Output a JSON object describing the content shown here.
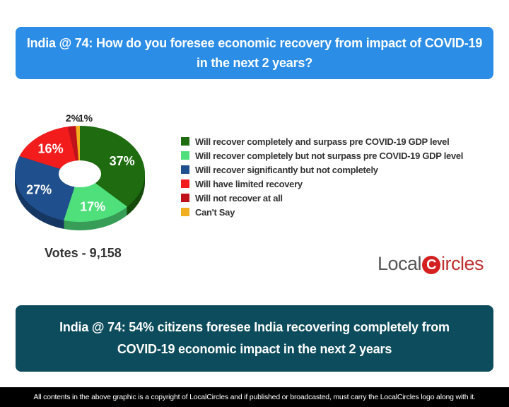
{
  "header": {
    "line1": "India @ 74: How do you foresee economic recovery from impact of COVID-19",
    "line2": "in the next 2 years?"
  },
  "chart_data": {
    "type": "pie",
    "style": "donut-3d",
    "categories": [
      "Will recover completely and surpass pre COVID-19 GDP level",
      "Will recover completely but not surpass pre COVID-19 GDP level",
      "Will recover significantly but not completely",
      "Will have limited recovery",
      "Will not recover at all",
      "Can't Say"
    ],
    "values": [
      37,
      17,
      27,
      16,
      2,
      1
    ],
    "labels": [
      "37%",
      "17%",
      "27%",
      "16%",
      "2%",
      "1%"
    ],
    "colors": [
      "#1e6b10",
      "#4fe07c",
      "#1f4f8c",
      "#f21c1c",
      "#c0121a",
      "#f0b020"
    ],
    "legend_position": "right"
  },
  "votes": "Votes - 9,158",
  "logo": {
    "text": "LocalCircles",
    "part1": "Local",
    "part2": "ircles",
    "mark": "C"
  },
  "conclusion": {
    "line1": "India @ 74: 54% citizens foresee India recovering completely from",
    "line2": "COVID-19 economic impact in the next 2 years"
  },
  "footer": "All contents in the above graphic is a copyright of LocalCircles and if published or broadcasted, must carry the LocalCircles logo along with it."
}
